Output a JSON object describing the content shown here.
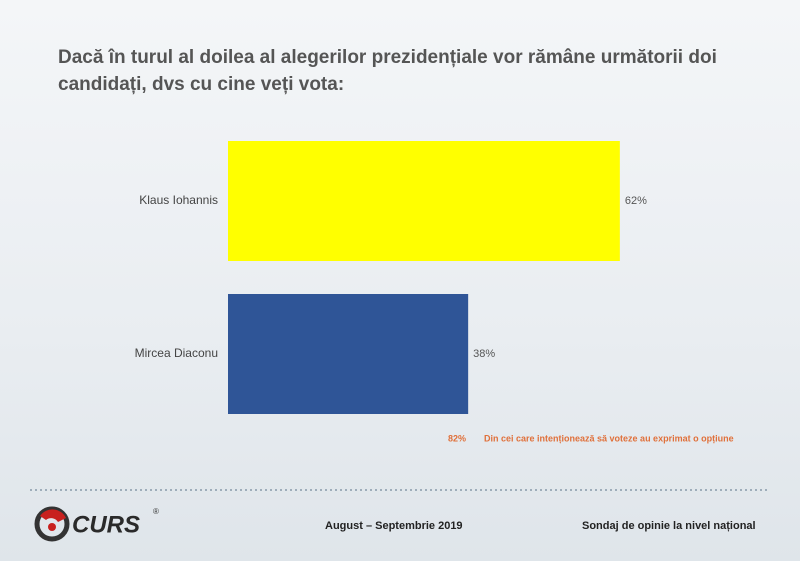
{
  "chart_data": {
    "type": "bar",
    "orientation": "horizontal",
    "title": "Dacă în turul al doilea al alegerilor prezidențiale vor rămâne următorii doi candidați, dvs cu cine veți vota:",
    "categories": [
      "Klaus Iohannis",
      "Mircea Diaconu"
    ],
    "values": [
      62,
      38
    ],
    "value_labels": [
      "62%",
      "38%"
    ],
    "colors": [
      "#ffff00",
      "#2f5597"
    ],
    "note": {
      "value": 82,
      "value_label": "82%",
      "text": "Din cei care intenționează să voteze au exprimat o opțiune"
    }
  },
  "footer": {
    "logo": "CURS",
    "period": "August – Septembrie 2019",
    "description": "Sondaj de opinie la nivel național"
  }
}
